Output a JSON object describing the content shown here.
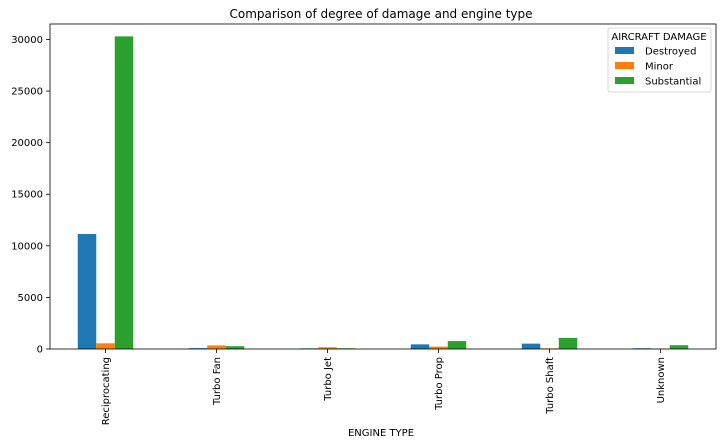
{
  "chart_data": {
    "type": "bar",
    "title": "Comparison of degree of damage and engine type",
    "xlabel": "ENGINE TYPE",
    "ylabel": "",
    "categories": [
      "Reciprocating",
      "Turbo Fan",
      "Turbo Jet",
      "Turbo Prop",
      "Turbo Shaft",
      "Unknown"
    ],
    "ylim": [
      0,
      31500
    ],
    "yticks": [
      0,
      5000,
      10000,
      15000,
      20000,
      25000,
      30000
    ],
    "grid": false,
    "legend": {
      "title": "AIRCRAFT DAMAGE",
      "placement": "top-right"
    },
    "series": [
      {
        "name": "Destroyed",
        "color": "#1f77b4",
        "values": [
          11150,
          80,
          60,
          450,
          520,
          70
        ]
      },
      {
        "name": "Minor",
        "color": "#ff7f0e",
        "values": [
          550,
          350,
          170,
          230,
          60,
          40
        ]
      },
      {
        "name": "Substantial",
        "color": "#2ca02c",
        "values": [
          30300,
          270,
          70,
          770,
          1080,
          370
        ]
      }
    ]
  }
}
